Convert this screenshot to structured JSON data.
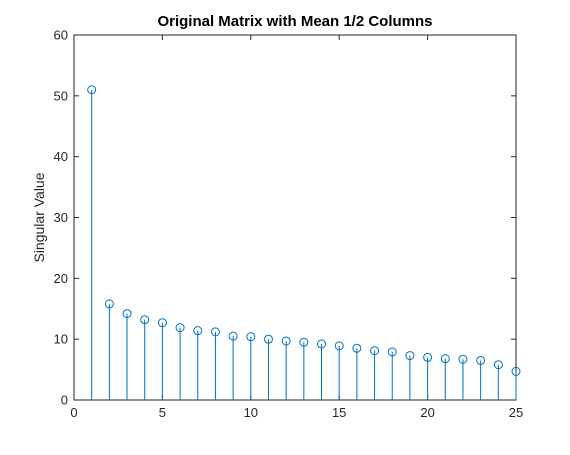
{
  "chart_data": {
    "type": "stem",
    "title": "Original Matrix with Mean 1/2 Columns",
    "xlabel": "",
    "ylabel": "Singular Value",
    "xlim": [
      0,
      25
    ],
    "ylim": [
      0,
      60
    ],
    "xticks": [
      0,
      5,
      10,
      15,
      20,
      25
    ],
    "yticks": [
      0,
      10,
      20,
      30,
      40,
      50,
      60
    ],
    "grid": false,
    "series": [
      {
        "x": [
          1,
          2,
          3,
          4,
          5,
          6,
          7,
          8,
          9,
          10,
          11,
          12,
          13,
          14,
          15,
          16,
          17,
          18,
          19,
          20,
          21,
          22,
          23,
          24,
          25
        ],
        "values": [
          51.0,
          15.8,
          14.2,
          13.2,
          12.7,
          11.9,
          11.4,
          11.2,
          10.5,
          10.4,
          10.0,
          9.7,
          9.5,
          9.2,
          8.9,
          8.5,
          8.1,
          7.9,
          7.3,
          7.0,
          6.8,
          6.7,
          6.5,
          5.8,
          4.7
        ],
        "color": "#0072BD"
      }
    ]
  }
}
